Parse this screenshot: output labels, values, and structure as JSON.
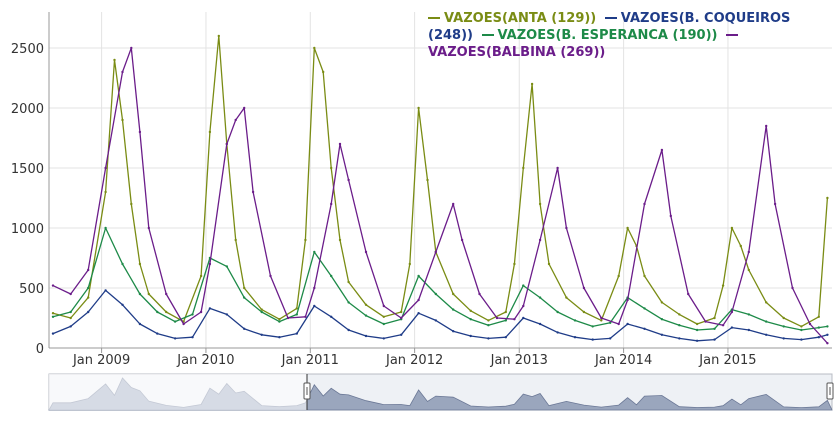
{
  "chart_data": {
    "type": "line",
    "title": "",
    "xlabel": "",
    "ylabel": "",
    "ylim": [
      0,
      2800
    ],
    "xlim": [
      "2008-07-01",
      "2015-12-31"
    ],
    "y_ticks": [
      "0",
      "500",
      "1000",
      "1500",
      "2000",
      "2500"
    ],
    "x_ticks": [
      "Jan 2009",
      "Jan 2010",
      "Jan 2011",
      "Jan 2012",
      "Jan 2013",
      "Jan 2014",
      "Jan 2015"
    ],
    "grid": true,
    "legend_position": "top-right",
    "series": [
      {
        "name": "VAZOES(ANTA (129))",
        "color": "#7a8c14",
        "points": [
          [
            "2008-07",
            290
          ],
          [
            "2008-09",
            250
          ],
          [
            "2008-11",
            420
          ],
          [
            "2009-01",
            1300
          ],
          [
            "2009-02",
            2400
          ],
          [
            "2009-03",
            1900
          ],
          [
            "2009-04",
            1200
          ],
          [
            "2009-05",
            700
          ],
          [
            "2009-06",
            450
          ],
          [
            "2009-08",
            300
          ],
          [
            "2009-10",
            220
          ],
          [
            "2009-12",
            600
          ],
          [
            "2010-01",
            1800
          ],
          [
            "2010-02",
            2600
          ],
          [
            "2010-03",
            1700
          ],
          [
            "2010-04",
            900
          ],
          [
            "2010-05",
            500
          ],
          [
            "2010-07",
            320
          ],
          [
            "2010-09",
            240
          ],
          [
            "2010-11",
            330
          ],
          [
            "2010-12",
            900
          ],
          [
            "2011-01",
            2500
          ],
          [
            "2011-02",
            2300
          ],
          [
            "2011-03",
            1500
          ],
          [
            "2011-04",
            900
          ],
          [
            "2011-05",
            550
          ],
          [
            "2011-07",
            360
          ],
          [
            "2011-09",
            260
          ],
          [
            "2011-11",
            300
          ],
          [
            "2011-12",
            700
          ],
          [
            "2012-01",
            2000
          ],
          [
            "2012-02",
            1400
          ],
          [
            "2012-03",
            800
          ],
          [
            "2012-05",
            450
          ],
          [
            "2012-07",
            310
          ],
          [
            "2012-09",
            230
          ],
          [
            "2012-11",
            300
          ],
          [
            "2012-12",
            700
          ],
          [
            "2013-01",
            1500
          ],
          [
            "2013-02",
            2200
          ],
          [
            "2013-03",
            1200
          ],
          [
            "2013-04",
            700
          ],
          [
            "2013-06",
            420
          ],
          [
            "2013-08",
            300
          ],
          [
            "2013-10",
            230
          ],
          [
            "2013-12",
            600
          ],
          [
            "2014-01",
            1000
          ],
          [
            "2014-02",
            850
          ],
          [
            "2014-03",
            600
          ],
          [
            "2014-05",
            380
          ],
          [
            "2014-07",
            280
          ],
          [
            "2014-09",
            200
          ],
          [
            "2014-11",
            250
          ],
          [
            "2014-12",
            520
          ],
          [
            "2015-01",
            1000
          ],
          [
            "2015-02",
            850
          ],
          [
            "2015-03",
            650
          ],
          [
            "2015-05",
            380
          ],
          [
            "2015-07",
            250
          ],
          [
            "2015-09",
            180
          ],
          [
            "2015-11",
            260
          ],
          [
            "2015-12",
            1250
          ]
        ]
      },
      {
        "name": "VAZOES(B. COQUEIROS (248))",
        "color": "#1f3c88",
        "points": [
          [
            "2008-07",
            120
          ],
          [
            "2008-09",
            180
          ],
          [
            "2008-11",
            300
          ],
          [
            "2009-01",
            480
          ],
          [
            "2009-03",
            360
          ],
          [
            "2009-05",
            200
          ],
          [
            "2009-07",
            120
          ],
          [
            "2009-09",
            80
          ],
          [
            "2009-11",
            90
          ],
          [
            "2010-01",
            330
          ],
          [
            "2010-03",
            280
          ],
          [
            "2010-05",
            160
          ],
          [
            "2010-07",
            110
          ],
          [
            "2010-09",
            90
          ],
          [
            "2010-11",
            120
          ],
          [
            "2011-01",
            350
          ],
          [
            "2011-03",
            260
          ],
          [
            "2011-05",
            150
          ],
          [
            "2011-07",
            100
          ],
          [
            "2011-09",
            80
          ],
          [
            "2011-11",
            110
          ],
          [
            "2012-01",
            290
          ],
          [
            "2012-03",
            230
          ],
          [
            "2012-05",
            140
          ],
          [
            "2012-07",
            100
          ],
          [
            "2012-09",
            80
          ],
          [
            "2012-11",
            90
          ],
          [
            "2013-01",
            250
          ],
          [
            "2013-03",
            200
          ],
          [
            "2013-05",
            130
          ],
          [
            "2013-07",
            90
          ],
          [
            "2013-09",
            70
          ],
          [
            "2013-11",
            80
          ],
          [
            "2014-01",
            200
          ],
          [
            "2014-03",
            160
          ],
          [
            "2014-05",
            110
          ],
          [
            "2014-07",
            80
          ],
          [
            "2014-09",
            60
          ],
          [
            "2014-11",
            70
          ],
          [
            "2015-01",
            170
          ],
          [
            "2015-03",
            150
          ],
          [
            "2015-05",
            110
          ],
          [
            "2015-07",
            80
          ],
          [
            "2015-09",
            70
          ],
          [
            "2015-11",
            90
          ],
          [
            "2015-12",
            110
          ]
        ]
      },
      {
        "name": "VAZOES(B. ESPERANCA (190))",
        "color": "#1d8a48",
        "points": [
          [
            "2008-07",
            260
          ],
          [
            "2008-09",
            300
          ],
          [
            "2008-11",
            500
          ],
          [
            "2009-01",
            1000
          ],
          [
            "2009-03",
            700
          ],
          [
            "2009-05",
            450
          ],
          [
            "2009-07",
            300
          ],
          [
            "2009-09",
            220
          ],
          [
            "2009-11",
            280
          ],
          [
            "2010-01",
            750
          ],
          [
            "2010-03",
            680
          ],
          [
            "2010-05",
            420
          ],
          [
            "2010-07",
            300
          ],
          [
            "2010-09",
            220
          ],
          [
            "2010-11",
            280
          ],
          [
            "2011-01",
            800
          ],
          [
            "2011-03",
            600
          ],
          [
            "2011-05",
            380
          ],
          [
            "2011-07",
            270
          ],
          [
            "2011-09",
            200
          ],
          [
            "2011-11",
            240
          ],
          [
            "2012-01",
            600
          ],
          [
            "2012-03",
            450
          ],
          [
            "2012-05",
            320
          ],
          [
            "2012-07",
            240
          ],
          [
            "2012-09",
            190
          ],
          [
            "2012-11",
            230
          ],
          [
            "2013-01",
            520
          ],
          [
            "2013-03",
            420
          ],
          [
            "2013-05",
            300
          ],
          [
            "2013-07",
            230
          ],
          [
            "2013-09",
            180
          ],
          [
            "2013-11",
            210
          ],
          [
            "2014-01",
            420
          ],
          [
            "2014-03",
            330
          ],
          [
            "2014-05",
            240
          ],
          [
            "2014-07",
            190
          ],
          [
            "2014-09",
            150
          ],
          [
            "2014-11",
            160
          ],
          [
            "2015-01",
            320
          ],
          [
            "2015-03",
            280
          ],
          [
            "2015-05",
            220
          ],
          [
            "2015-07",
            180
          ],
          [
            "2015-09",
            150
          ],
          [
            "2015-11",
            170
          ],
          [
            "2015-12",
            180
          ]
        ]
      },
      {
        "name": "VAZOES(BALBINA (269))",
        "color": "#6b1d8a",
        "points": [
          [
            "2008-07",
            520
          ],
          [
            "2008-09",
            450
          ],
          [
            "2008-11",
            650
          ],
          [
            "2009-01",
            1500
          ],
          [
            "2009-03",
            2300
          ],
          [
            "2009-04",
            2500
          ],
          [
            "2009-05",
            1800
          ],
          [
            "2009-06",
            1000
          ],
          [
            "2009-08",
            450
          ],
          [
            "2009-10",
            200
          ],
          [
            "2009-12",
            300
          ],
          [
            "2010-01",
            700
          ],
          [
            "2010-03",
            1700
          ],
          [
            "2010-04",
            1900
          ],
          [
            "2010-05",
            2000
          ],
          [
            "2010-06",
            1300
          ],
          [
            "2010-08",
            600
          ],
          [
            "2010-10",
            250
          ],
          [
            "2010-12",
            260
          ],
          [
            "2011-01",
            500
          ],
          [
            "2011-03",
            1200
          ],
          [
            "2011-04",
            1700
          ],
          [
            "2011-05",
            1400
          ],
          [
            "2011-07",
            800
          ],
          [
            "2011-09",
            350
          ],
          [
            "2011-11",
            250
          ],
          [
            "2012-01",
            400
          ],
          [
            "2012-03",
            800
          ],
          [
            "2012-05",
            1200
          ],
          [
            "2012-06",
            900
          ],
          [
            "2012-08",
            450
          ],
          [
            "2012-10",
            250
          ],
          [
            "2012-12",
            240
          ],
          [
            "2013-01",
            350
          ],
          [
            "2013-03",
            900
          ],
          [
            "2013-05",
            1500
          ],
          [
            "2013-06",
            1000
          ],
          [
            "2013-08",
            500
          ],
          [
            "2013-10",
            250
          ],
          [
            "2013-12",
            200
          ],
          [
            "2014-01",
            400
          ],
          [
            "2014-03",
            1200
          ],
          [
            "2014-05",
            1650
          ],
          [
            "2014-06",
            1100
          ],
          [
            "2014-08",
            450
          ],
          [
            "2014-10",
            220
          ],
          [
            "2014-12",
            190
          ],
          [
            "2015-01",
            300
          ],
          [
            "2015-03",
            800
          ],
          [
            "2015-05",
            1850
          ],
          [
            "2015-06",
            1200
          ],
          [
            "2015-08",
            500
          ],
          [
            "2015-10",
            200
          ],
          [
            "2015-12",
            40
          ]
        ]
      }
    ]
  }
}
